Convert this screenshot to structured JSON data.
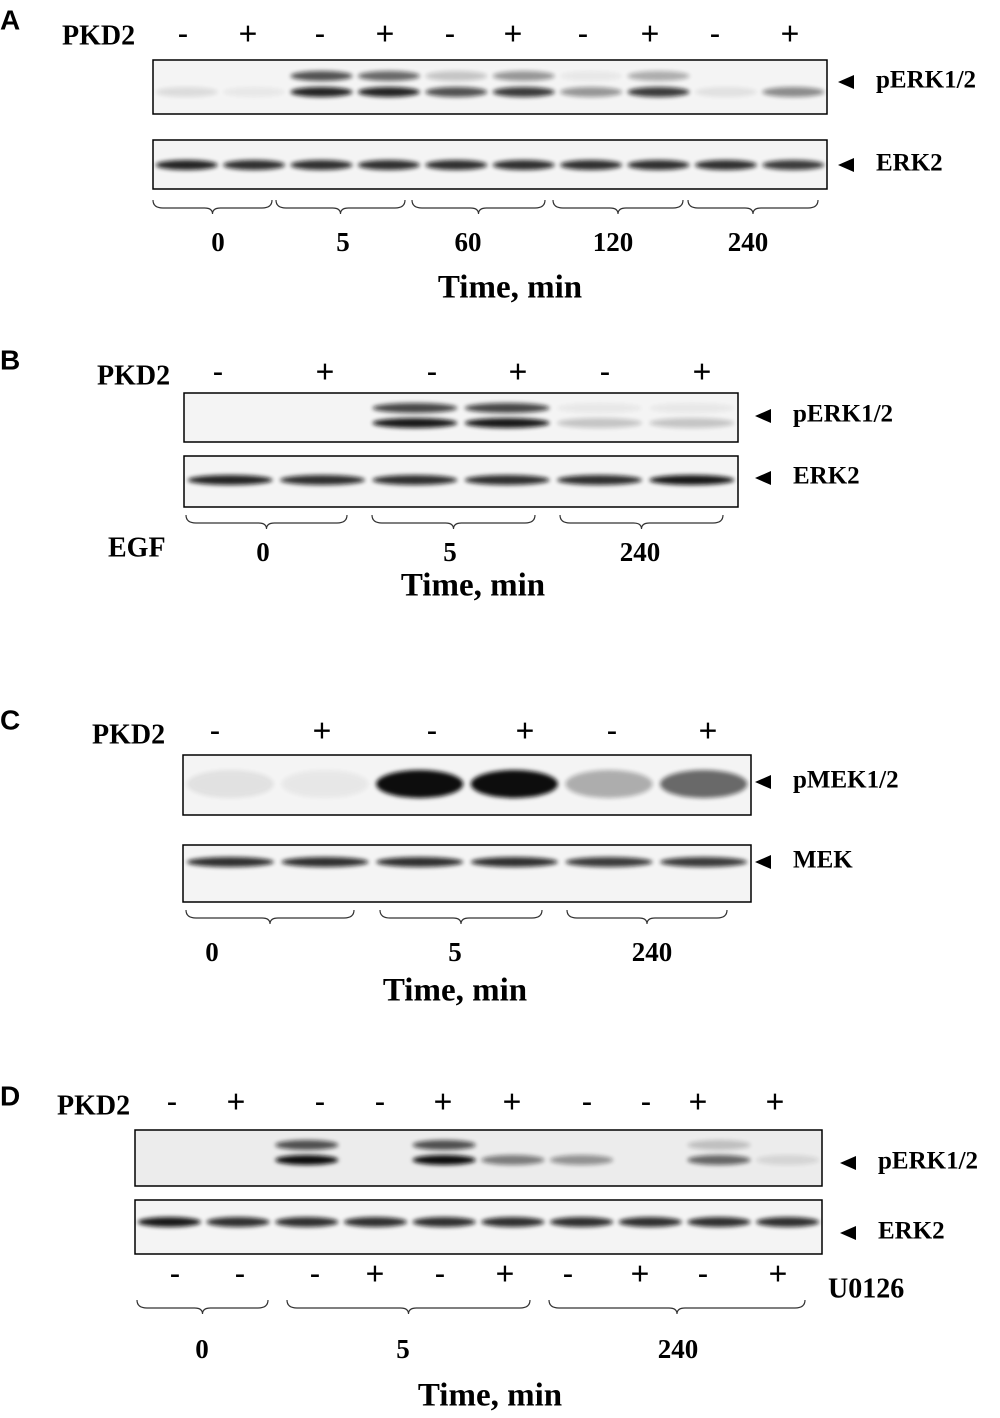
{
  "panels": [
    {
      "letter": "A",
      "treatment_label": "PKD2",
      "treatment_marks": [
        "-",
        "+",
        "-",
        "+",
        "-",
        "+",
        "-",
        "+",
        "-",
        "+"
      ],
      "blots": [
        {
          "label": "pERK1/2"
        },
        {
          "label": "ERK2"
        }
      ],
      "time_points": [
        "0",
        "5",
        "60",
        "120",
        "240"
      ],
      "axis_label": "Time, min"
    },
    {
      "letter": "B",
      "treatment_label": "PKD2",
      "treatment_marks": [
        "-",
        "+",
        "-",
        "+",
        "-",
        "+"
      ],
      "blots": [
        {
          "label": "pERK1/2"
        },
        {
          "label": "ERK2"
        }
      ],
      "stimulus_label": "EGF",
      "time_points": [
        "0",
        "5",
        "240"
      ],
      "axis_label": "Time, min"
    },
    {
      "letter": "C",
      "treatment_label": "PKD2",
      "treatment_marks": [
        "-",
        "+",
        "-",
        "+",
        "-",
        "+"
      ],
      "blots": [
        {
          "label": "pMEK1/2"
        },
        {
          "label": "MEK"
        }
      ],
      "time_points": [
        "0",
        "5",
        "240"
      ],
      "axis_label": "Time, min"
    },
    {
      "letter": "D",
      "treatment_label": "PKD2",
      "treatment_marks": [
        "-",
        "+",
        "-",
        "-",
        "+",
        "+",
        "-",
        "-",
        "+",
        "+"
      ],
      "blots": [
        {
          "label": "pERK1/2"
        },
        {
          "label": "ERK2"
        }
      ],
      "inhibitor_label": "U0126",
      "inhibitor_marks": [
        "-",
        "-",
        "-",
        "+",
        "-",
        "+",
        "-",
        "+",
        "-",
        "+"
      ],
      "time_points": [
        "0",
        "5",
        "240"
      ],
      "axis_label": "Time, min"
    }
  ]
}
